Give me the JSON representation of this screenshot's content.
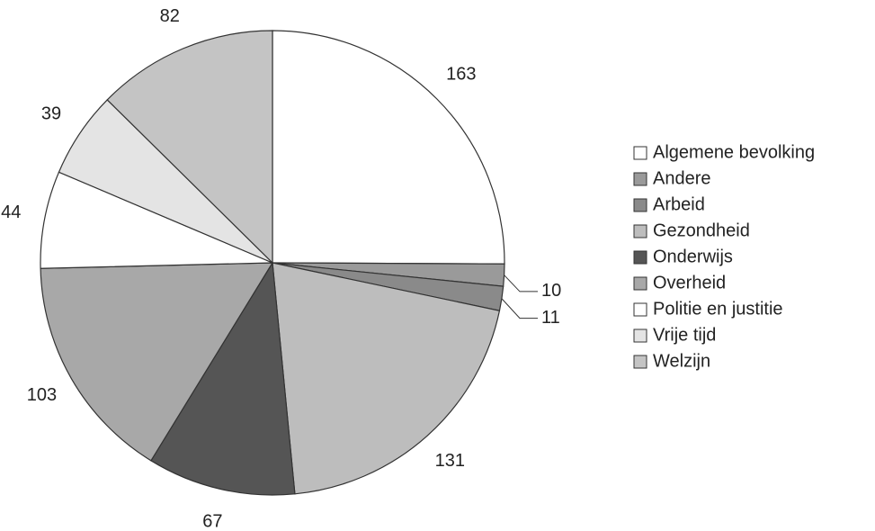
{
  "chart_data": {
    "type": "pie",
    "categories": [
      "Algemene bevolking",
      "Andere",
      "Arbeid",
      "Gezondheid",
      "Onderwijs",
      "Overheid",
      "Politie en justitie",
      "Vrije tijd",
      "Welzijn"
    ],
    "values": [
      163,
      10,
      11,
      131,
      67,
      103,
      44,
      39,
      82
    ],
    "colors": [
      "#ffffff",
      "#9a9a9a",
      "#8a8a8a",
      "#bdbdbd",
      "#555555",
      "#a8a8a8",
      "#ffffff",
      "#e4e4e4",
      "#c4c4c4"
    ],
    "legend": "right"
  }
}
